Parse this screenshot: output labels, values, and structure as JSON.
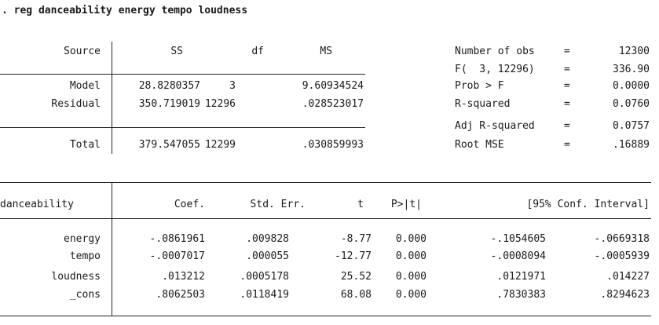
{
  "command": ". reg danceability energy tempo loudness",
  "anova": {
    "headers": {
      "source": "Source",
      "ss": "SS",
      "df": "df",
      "ms": "MS"
    },
    "rows": [
      {
        "source": "Model",
        "ss": "28.8280357",
        "df": "3",
        "ms": "9.60934524"
      },
      {
        "source": "Residual",
        "ss": "350.719019",
        "df": "12296",
        "ms": ".028523017"
      }
    ],
    "total": {
      "source": "Total",
      "ss": "379.547055",
      "df": "12299",
      "ms": ".030859993"
    }
  },
  "stats": [
    {
      "label": "Number of obs",
      "eq": "=",
      "value": "12300"
    },
    {
      "label": "F(  3, 12296)",
      "eq": "=",
      "value": "336.90"
    },
    {
      "label": "Prob > F",
      "eq": "=",
      "value": "0.0000"
    },
    {
      "label": "R-squared",
      "eq": "=",
      "value": "0.0760"
    },
    {
      "label": "Adj R-squared",
      "eq": "=",
      "value": "0.0757"
    },
    {
      "label": "Root MSE",
      "eq": "=",
      "value": ".16889"
    }
  ],
  "coef_table": {
    "headers": {
      "depvar": "danceability",
      "coef": "Coef.",
      "se": "Std. Err.",
      "t": "t",
      "p": "P>|t|",
      "ci": "[95% Conf. Interval]"
    },
    "rows": [
      {
        "var": "energy",
        "coef": "-.0861961",
        "se": ".009828",
        "t": "-8.77",
        "p": "0.000",
        "lo": "-.1054605",
        "hi": "-.0669318"
      },
      {
        "var": "tempo",
        "coef": "-.0007017",
        "se": ".000055",
        "t": "-12.77",
        "p": "0.000",
        "lo": "-.0008094",
        "hi": "-.0005939"
      },
      {
        "var": "loudness",
        "coef": ".013212",
        "se": ".0005178",
        "t": "25.52",
        "p": "0.000",
        "lo": ".0121971",
        "hi": ".014227"
      },
      {
        "var": "_cons",
        "coef": ".8062503",
        "se": ".0118419",
        "t": "68.08",
        "p": "0.000",
        "lo": ".7830383",
        "hi": ".8294623"
      }
    ]
  }
}
